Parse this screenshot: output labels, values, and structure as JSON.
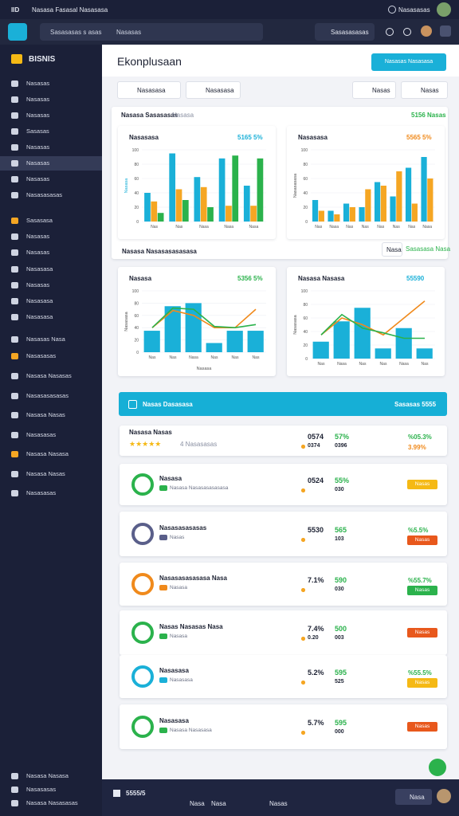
{
  "topbar": {
    "brand": "IID",
    "title": "Nasasa Fasasal Nasasasa",
    "user": "Nasasasas"
  },
  "toolbar": {
    "search": "Sasasasas s asas",
    "search_scope": "Nasasas",
    "button": "Sasasasasas"
  },
  "sidebar": {
    "brand": "BISNIS",
    "groups": [
      [
        {
          "label": "Nasasas",
          "icon_color": "#cfd4e2"
        },
        {
          "label": "Nasasas",
          "icon_color": "#cfd4e2"
        },
        {
          "label": "Nasasas",
          "icon_color": "#cfd4e2"
        },
        {
          "label": "Sasasas",
          "icon_color": "#cfd4e2"
        },
        {
          "label": "Nasasas",
          "icon_color": "#cfd4e2"
        },
        {
          "label": "Nasasas",
          "icon_color": "#cfd4e2",
          "active": true
        },
        {
          "label": "Nasasas",
          "icon_color": "#cfd4e2"
        },
        {
          "label": "Nasasasasas",
          "icon_color": "#cfd4e2"
        }
      ],
      [
        {
          "label": "Sasasasa",
          "icon_color": "#f5a623"
        },
        {
          "label": "Nasasas",
          "icon_color": "#cfd4e2"
        },
        {
          "label": "Nasasas",
          "icon_color": "#cfd4e2"
        },
        {
          "label": "Nasasasa",
          "icon_color": "#cfd4e2"
        },
        {
          "label": "Nasasas",
          "icon_color": "#cfd4e2"
        },
        {
          "label": "Nasasasa",
          "icon_color": "#cfd4e2"
        },
        {
          "label": "Nasasasa",
          "icon_color": "#cfd4e2"
        }
      ],
      [
        {
          "label": "Nasasas Nasa",
          "icon_color": "#cfd4e2"
        },
        {
          "label": "Nasasasas",
          "icon_color": "#f5a623"
        }
      ],
      [
        {
          "label": "Nasasa Nasasas",
          "icon_color": "#cfd4e2"
        },
        {
          "label": "Nasasasasasas",
          "icon_color": "#cfd4e2"
        },
        {
          "label": "Nasasa Nasas",
          "icon_color": "#cfd4e2"
        },
        {
          "label": "Nasasasas",
          "icon_color": "#cfd4e2"
        },
        {
          "label": "Nasasa Nasasa",
          "icon_color": "#f5a623"
        },
        {
          "label": "Nasasa Nasas",
          "icon_color": "#cfd4e2"
        },
        {
          "label": "Nasasasas",
          "icon_color": "#cfd4e2"
        }
      ]
    ],
    "footer": [
      "Nasasa Nasasa",
      "Nasasasas",
      "Nasasa Nasasasas"
    ]
  },
  "main": {
    "title": "Ekonplusaan",
    "action": "Nasasas Nasasasa",
    "filters": [
      "Nasasasa",
      "Nasasasa"
    ],
    "filters_right": [
      "Nasas",
      "Nasas"
    ],
    "section1": {
      "title": "Nasasa Sasasasas",
      "subtitle": "Nasasa",
      "badge": "5156 Nasas"
    },
    "section2": {
      "title": "Nasasa Nasasasasasasa",
      "button": "Nasa",
      "link": "Sasasasa Nasa"
    },
    "charts": [
      {
        "title": "Nasasasa",
        "value": "5165 5%",
        "value_color": "#1ab0d8",
        "ylabel": "Nasasa",
        "ylim": [
          0,
          100
        ],
        "yticks": [
          0,
          20,
          40,
          60,
          80,
          100
        ],
        "categories": [
          "Nas",
          "Nas",
          "Nasa",
          "Nasa",
          "Nasa"
        ],
        "series": [
          {
            "kind": "bar",
            "color": "#1ab0d8",
            "values": [
              40,
              95,
              62,
              88,
              50
            ]
          },
          {
            "kind": "bar",
            "color": "#f5a623",
            "values": [
              28,
              45,
              48,
              22,
              22
            ]
          },
          {
            "kind": "bar",
            "color": "#2bb24c",
            "values": [
              12,
              30,
              20,
              92,
              88
            ]
          }
        ]
      },
      {
        "title": "Nasasasa",
        "value": "5565 5%",
        "value_color": "#f08a1c",
        "ylabel": "Nasasasasa",
        "ylim": [
          0,
          100
        ],
        "yticks": [
          0,
          20,
          40,
          60,
          80,
          100
        ],
        "categories": [
          "Nas",
          "Nasa",
          "Nas",
          "Nas",
          "Nas",
          "Nas",
          "Nas",
          "Nasa"
        ],
        "series": [
          {
            "kind": "bar",
            "color": "#1ab0d8",
            "values": [
              30,
              15,
              25,
              20,
              55,
              35,
              75,
              90
            ]
          },
          {
            "kind": "bar",
            "color": "#f5a623",
            "values": [
              15,
              10,
              20,
              45,
              50,
              70,
              25,
              60
            ]
          }
        ]
      },
      {
        "title": "Nasasa",
        "value": "5356 5%",
        "value_color": "#2bb24c",
        "ylabel": "Nasasasa",
        "xlabel": "Nasasa",
        "ylim": [
          0,
          100
        ],
        "yticks": [
          0,
          20,
          40,
          60,
          80,
          100
        ],
        "categories": [
          "Nas",
          "Nas",
          "Nasa",
          "Nas",
          "Nas",
          "Nas"
        ],
        "series": [
          {
            "kind": "bar",
            "color": "#1ab0d8",
            "values": [
              35,
              75,
              80,
              15,
              35,
              35
            ]
          },
          {
            "kind": "line",
            "color": "#f08a1c",
            "values": [
              40,
              68,
              60,
              40,
              40,
              70
            ]
          },
          {
            "kind": "line",
            "color": "#2bb24c",
            "values": [
              40,
              72,
              70,
              42,
              40,
              45
            ]
          }
        ]
      },
      {
        "title": "Nasasa Nasasa",
        "value": "55590",
        "value_color": "#1ab0d8",
        "ylabel": "Nasasasa",
        "ylim": [
          0,
          100
        ],
        "yticks": [
          0,
          20,
          40,
          60,
          80,
          100
        ],
        "categories": [
          "Nas",
          "Nasa",
          "Nas",
          "Nas",
          "Nasa",
          "Nas"
        ],
        "series": [
          {
            "kind": "bar",
            "color": "#1ab0d8",
            "values": [
              25,
              55,
              75,
              15,
              45,
              15
            ]
          },
          {
            "kind": "line",
            "color": "#f08a1c",
            "values": [
              35,
              60,
              50,
              35,
              60,
              85
            ]
          },
          {
            "kind": "line",
            "color": "#2bb24c",
            "values": [
              35,
              65,
              45,
              38,
              30,
              30
            ]
          }
        ]
      }
    ],
    "banner": {
      "title": "Nasas Dasasasa",
      "value": "Sasasas 5555"
    },
    "rows": [
      {
        "title": "Nasasa Nasas",
        "stars": "★★★★★",
        "subtitle": "4 Nasasasas",
        "left": [
          "0574",
          "0374"
        ],
        "mid": [
          "57%",
          "0396"
        ],
        "right": [
          "%05.3%",
          "3.99%"
        ],
        "icon_color": null
      },
      {
        "title": "Nasasa",
        "subtitle": "Nasasa Nasasasasasasa",
        "left": [
          "0524",
          ""
        ],
        "mid": [
          "55%",
          "030"
        ],
        "tag": "Nasas",
        "tag_color": "#f5b915",
        "icon_color": "#2bb24c"
      },
      {
        "title": "Nasasasasasas",
        "subtitle": "Nasas",
        "left": [
          "5530",
          ""
        ],
        "mid": [
          "565",
          "103"
        ],
        "right": [
          "%5.5%"
        ],
        "tag": "Nasas",
        "tag_color": "#e8581c",
        "icon_color": "#5a5f8a"
      },
      {
        "title": "Nasasasasasasa Nasa",
        "subtitle": "Nasasa",
        "left": [
          "7.1%",
          ""
        ],
        "mid": [
          "590",
          "030"
        ],
        "right": [
          "%55.7%"
        ],
        "tag": "Nasas",
        "tag_color": "#2bb24c",
        "icon_color": "#f08a1c"
      },
      {
        "title": "Nasas Nasasas Nasa",
        "subtitle": "Nasasa",
        "left": [
          "7.4%",
          "0.20"
        ],
        "mid": [
          "500",
          "003"
        ],
        "tag": "Nasas",
        "tag_color": "#e8581c",
        "icon_color": "#2bb24c"
      },
      {
        "title": "Nasasasa",
        "subtitle": "Nasasasa",
        "left": [
          "5.2%",
          ""
        ],
        "mid": [
          "595",
          "525"
        ],
        "right": [
          "%55.5%"
        ],
        "tag": "Nasas",
        "tag_color": "#f5b915",
        "icon_color": "#1ab0d8"
      },
      {
        "title": "Nasasasa",
        "subtitle": "Nasasa Nasasasa",
        "left": [
          "5.7%",
          ""
        ],
        "mid": [
          "595",
          "000"
        ],
        "tag": "Nasas",
        "tag_color": "#e8581c",
        "icon_color": "#2bb24c"
      }
    ]
  },
  "bottombar": {
    "brand": "5555/5",
    "items": [
      "Nasa",
      "Nasa",
      "Nasas"
    ],
    "user": "Nasa"
  }
}
